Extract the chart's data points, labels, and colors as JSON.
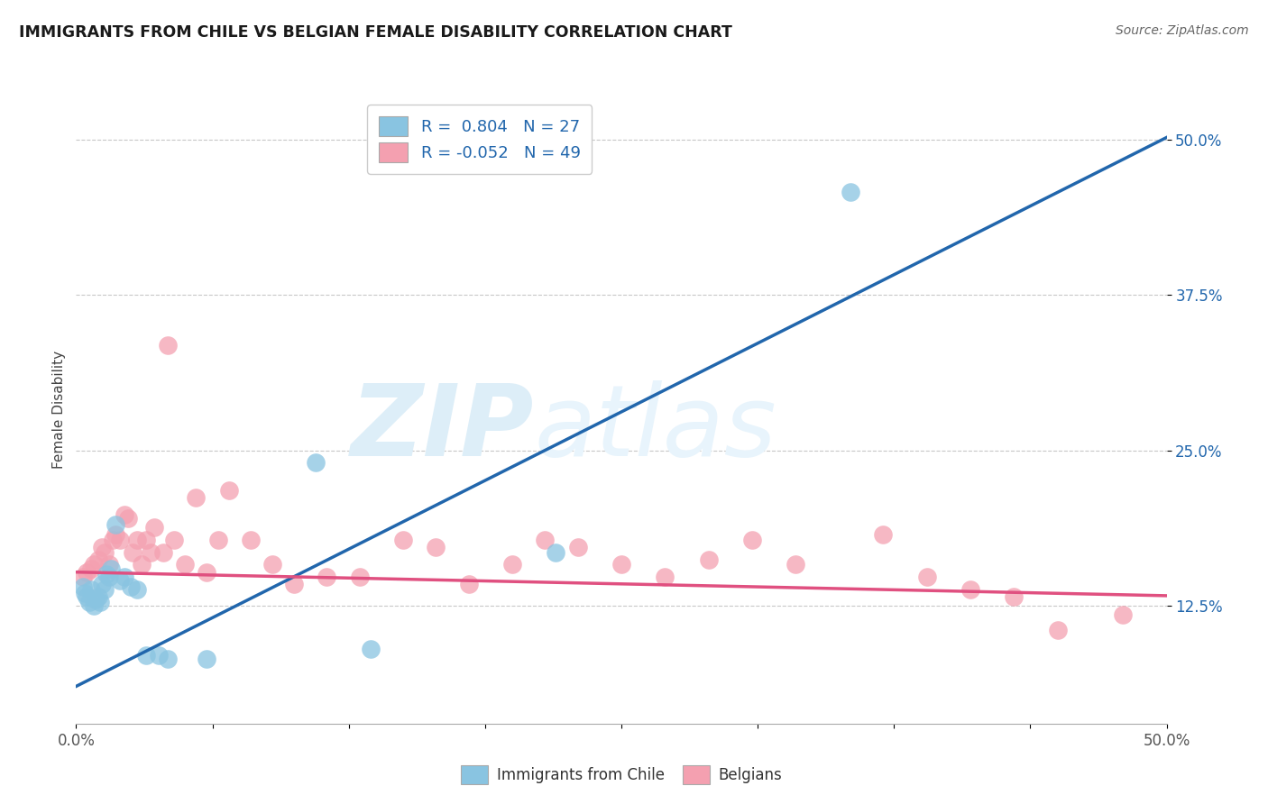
{
  "title": "IMMIGRANTS FROM CHILE VS BELGIAN FEMALE DISABILITY CORRELATION CHART",
  "source": "Source: ZipAtlas.com",
  "ylabel": "Female Disability",
  "xlim": [
    0.0,
    0.5
  ],
  "ylim": [
    0.03,
    0.535
  ],
  "xtick_values": [
    0.0,
    0.0625,
    0.125,
    0.1875,
    0.25,
    0.3125,
    0.375,
    0.4375,
    0.5
  ],
  "xtick_labels": [
    "0.0%",
    "",
    "",
    "",
    "",
    "",
    "",
    "",
    "50.0%"
  ],
  "ytick_values": [
    0.125,
    0.25,
    0.375,
    0.5
  ],
  "ytick_labels": [
    "12.5%",
    "25.0%",
    "37.5%",
    "50.0%"
  ],
  "blue_color": "#89c4e1",
  "pink_color": "#f4a0b0",
  "blue_line_color": "#2166ac",
  "pink_line_color": "#e05080",
  "legend_label1": "Immigrants from Chile",
  "legend_label2": "Belgians",
  "blue_x": [
    0.003,
    0.004,
    0.005,
    0.006,
    0.007,
    0.008,
    0.009,
    0.01,
    0.011,
    0.012,
    0.013,
    0.014,
    0.015,
    0.016,
    0.018,
    0.02,
    0.022,
    0.025,
    0.028,
    0.032,
    0.038,
    0.042,
    0.06,
    0.11,
    0.135,
    0.22,
    0.355
  ],
  "blue_y": [
    0.14,
    0.135,
    0.132,
    0.128,
    0.138,
    0.125,
    0.13,
    0.132,
    0.128,
    0.142,
    0.138,
    0.15,
    0.148,
    0.155,
    0.19,
    0.145,
    0.148,
    0.14,
    0.138,
    0.085,
    0.085,
    0.082,
    0.082,
    0.24,
    0.09,
    0.168,
    0.458
  ],
  "pink_x": [
    0.003,
    0.005,
    0.007,
    0.008,
    0.01,
    0.012,
    0.013,
    0.015,
    0.017,
    0.018,
    0.02,
    0.022,
    0.024,
    0.026,
    0.028,
    0.03,
    0.032,
    0.034,
    0.036,
    0.04,
    0.042,
    0.045,
    0.05,
    0.055,
    0.06,
    0.065,
    0.07,
    0.08,
    0.09,
    0.1,
    0.115,
    0.13,
    0.15,
    0.165,
    0.18,
    0.2,
    0.215,
    0.23,
    0.25,
    0.27,
    0.29,
    0.31,
    0.33,
    0.37,
    0.39,
    0.41,
    0.43,
    0.45,
    0.48
  ],
  "pink_y": [
    0.148,
    0.152,
    0.155,
    0.158,
    0.162,
    0.172,
    0.168,
    0.158,
    0.178,
    0.182,
    0.178,
    0.198,
    0.195,
    0.168,
    0.178,
    0.158,
    0.178,
    0.168,
    0.188,
    0.168,
    0.335,
    0.178,
    0.158,
    0.212,
    0.152,
    0.178,
    0.218,
    0.178,
    0.158,
    0.142,
    0.148,
    0.148,
    0.178,
    0.172,
    0.142,
    0.158,
    0.178,
    0.172,
    0.158,
    0.148,
    0.162,
    0.178,
    0.158,
    0.182,
    0.148,
    0.138,
    0.132,
    0.105,
    0.118
  ],
  "blue_trend_x": [
    0.0,
    0.5
  ],
  "blue_trend_y": [
    0.06,
    0.502
  ],
  "pink_trend_x": [
    0.0,
    0.5
  ],
  "pink_trend_y": [
    0.152,
    0.133
  ],
  "background_color": "#ffffff",
  "grid_color": "#c8c8c8",
  "watermark_text1": "ZIP",
  "watermark_text2": "atlas",
  "watermark_color": "#ddeef8"
}
